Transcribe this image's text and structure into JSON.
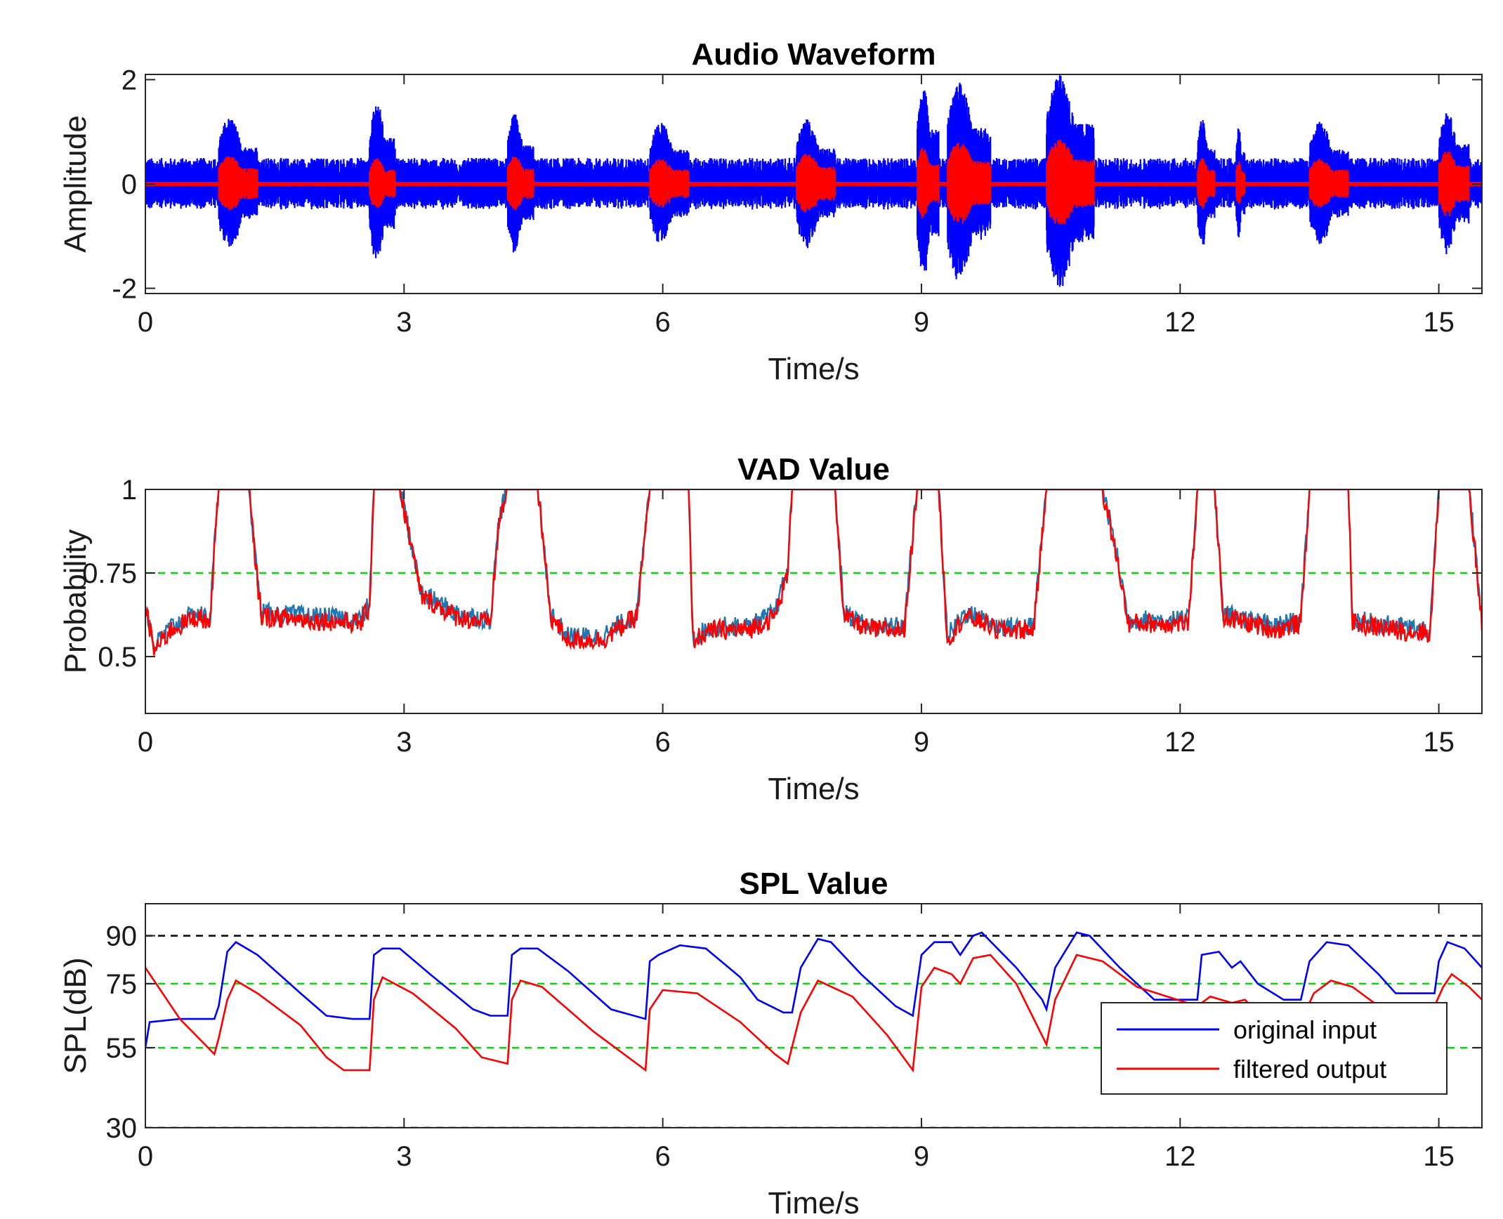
{
  "chart_data": [
    {
      "type": "line",
      "title": "Audio Waveform",
      "xlabel": "Time/s",
      "ylabel": "Amplitude",
      "xlim": [
        0,
        15.5
      ],
      "ylim": [
        -2.1,
        2.1
      ],
      "xticks": [
        0,
        3,
        6,
        9,
        12,
        15
      ],
      "yticks": [
        -2,
        0,
        2
      ],
      "ytick_labels": [
        "-2",
        "0",
        "2"
      ],
      "background_amplitude": 0.5,
      "series": [
        {
          "name": "original input",
          "color": "#0000ff",
          "bursts": [
            {
              "start": 0.85,
              "end": 1.3,
              "amp": 1.3
            },
            {
              "start": 2.6,
              "end": 2.9,
              "amp": 1.6
            },
            {
              "start": 4.2,
              "end": 4.5,
              "amp": 1.35
            },
            {
              "start": 5.85,
              "end": 6.3,
              "amp": 1.2
            },
            {
              "start": 7.55,
              "end": 8.0,
              "amp": 1.25
            },
            {
              "start": 8.95,
              "end": 9.2,
              "amp": 1.9
            },
            {
              "start": 9.3,
              "end": 9.8,
              "amp": 1.95
            },
            {
              "start": 10.45,
              "end": 11.0,
              "amp": 2.1
            },
            {
              "start": 12.2,
              "end": 12.4,
              "amp": 1.25
            },
            {
              "start": 12.65,
              "end": 12.75,
              "amp": 1.15
            },
            {
              "start": 13.5,
              "end": 13.95,
              "amp": 1.2
            },
            {
              "start": 15.0,
              "end": 15.35,
              "amp": 1.4
            }
          ]
        },
        {
          "name": "filtered output",
          "color": "#ff0000",
          "bursts": [
            {
              "start": 0.85,
              "end": 1.3,
              "amp": 0.55
            },
            {
              "start": 2.6,
              "end": 2.9,
              "amp": 0.5
            },
            {
              "start": 4.2,
              "end": 4.5,
              "amp": 0.55
            },
            {
              "start": 5.85,
              "end": 6.3,
              "amp": 0.5
            },
            {
              "start": 7.55,
              "end": 8.0,
              "amp": 0.6
            },
            {
              "start": 8.95,
              "end": 9.2,
              "amp": 0.7
            },
            {
              "start": 9.3,
              "end": 9.8,
              "amp": 0.8
            },
            {
              "start": 10.45,
              "end": 11.0,
              "amp": 0.85
            },
            {
              "start": 12.2,
              "end": 12.4,
              "amp": 0.5
            },
            {
              "start": 12.65,
              "end": 12.75,
              "amp": 0.45
            },
            {
              "start": 13.5,
              "end": 13.95,
              "amp": 0.5
            },
            {
              "start": 15.0,
              "end": 15.35,
              "amp": 0.65
            }
          ]
        }
      ]
    },
    {
      "type": "line",
      "title": "VAD Value",
      "xlabel": "Time/s",
      "ylabel": "Probability",
      "xlim": [
        0,
        15.5
      ],
      "ylim": [
        0.33,
        1.0
      ],
      "xticks": [
        0,
        3,
        6,
        9,
        12,
        15
      ],
      "yticks": [
        0.5,
        0.75,
        1
      ],
      "ytick_labels": [
        "0.5",
        "0.75",
        "1"
      ],
      "threshold": 0.75,
      "series": [
        {
          "name": "original input",
          "color": "#1f77b4",
          "baseline_offset": 0.01
        },
        {
          "name": "filtered output",
          "color": "#ff0000",
          "points": [
            [
              0,
              0.65
            ],
            [
              0.1,
              0.52
            ],
            [
              0.3,
              0.58
            ],
            [
              0.6,
              0.62
            ],
            [
              0.75,
              0.6
            ],
            [
              0.8,
              0.82
            ],
            [
              0.85,
              1.0
            ],
            [
              1.2,
              1.0
            ],
            [
              1.3,
              0.72
            ],
            [
              1.35,
              0.62
            ],
            [
              2.5,
              0.6
            ],
            [
              2.6,
              0.65
            ],
            [
              2.65,
              1.0
            ],
            [
              2.95,
              1.0
            ],
            [
              3.2,
              0.68
            ],
            [
              3.6,
              0.62
            ],
            [
              4.0,
              0.6
            ],
            [
              4.1,
              0.9
            ],
            [
              4.2,
              1.0
            ],
            [
              4.55,
              1.0
            ],
            [
              4.7,
              0.62
            ],
            [
              4.9,
              0.55
            ],
            [
              5.3,
              0.55
            ],
            [
              5.7,
              0.62
            ],
            [
              5.85,
              1.0
            ],
            [
              6.3,
              1.0
            ],
            [
              6.35,
              0.55
            ],
            [
              6.6,
              0.58
            ],
            [
              7.0,
              0.58
            ],
            [
              7.3,
              0.62
            ],
            [
              7.45,
              0.75
            ],
            [
              7.5,
              1.0
            ],
            [
              8.0,
              1.0
            ],
            [
              8.1,
              0.62
            ],
            [
              8.4,
              0.58
            ],
            [
              8.8,
              0.58
            ],
            [
              8.95,
              1.0
            ],
            [
              9.2,
              1.0
            ],
            [
              9.3,
              0.55
            ],
            [
              9.5,
              0.62
            ],
            [
              9.75,
              0.6
            ],
            [
              9.85,
              0.58
            ],
            [
              10.3,
              0.58
            ],
            [
              10.45,
              1.0
            ],
            [
              11.1,
              1.0
            ],
            [
              11.3,
              0.75
            ],
            [
              11.4,
              0.6
            ],
            [
              11.8,
              0.6
            ],
            [
              12.1,
              0.6
            ],
            [
              12.2,
              1.0
            ],
            [
              12.4,
              1.0
            ],
            [
              12.5,
              0.62
            ],
            [
              12.8,
              0.6
            ],
            [
              13.1,
              0.58
            ],
            [
              13.4,
              0.6
            ],
            [
              13.5,
              1.0
            ],
            [
              13.95,
              1.0
            ],
            [
              14.0,
              0.6
            ],
            [
              14.5,
              0.58
            ],
            [
              14.9,
              0.57
            ],
            [
              15.0,
              1.0
            ],
            [
              15.35,
              1.0
            ],
            [
              15.5,
              0.6
            ]
          ]
        }
      ]
    },
    {
      "type": "line",
      "title": "SPL Value",
      "xlabel": "Time/s",
      "ylabel": "SPL(dB)",
      "xlim": [
        0,
        15.5
      ],
      "ylim": [
        30,
        100
      ],
      "xticks": [
        0,
        3,
        6,
        9,
        12,
        15
      ],
      "yticks": [
        30,
        55,
        75,
        90
      ],
      "ytick_labels": [
        "30",
        "55",
        "75",
        "90"
      ],
      "reference_lines": [
        30,
        55,
        75,
        90
      ],
      "legend": {
        "position": "bottom-right",
        "entries": [
          "original input",
          "filtered output"
        ]
      },
      "series": [
        {
          "name": "original input",
          "color": "#0000ff",
          "points": [
            [
              0,
              55
            ],
            [
              0.05,
              63
            ],
            [
              0.4,
              64
            ],
            [
              0.8,
              64
            ],
            [
              0.85,
              68
            ],
            [
              0.95,
              85
            ],
            [
              1.05,
              88
            ],
            [
              1.3,
              84
            ],
            [
              1.8,
              72
            ],
            [
              2.1,
              65
            ],
            [
              2.4,
              64
            ],
            [
              2.6,
              64
            ],
            [
              2.65,
              84
            ],
            [
              2.75,
              86
            ],
            [
              2.95,
              86
            ],
            [
              3.3,
              78
            ],
            [
              3.8,
              67
            ],
            [
              4.0,
              65
            ],
            [
              4.2,
              65
            ],
            [
              4.25,
              84
            ],
            [
              4.35,
              86
            ],
            [
              4.55,
              86
            ],
            [
              4.9,
              79
            ],
            [
              5.4,
              67
            ],
            [
              5.8,
              64
            ],
            [
              5.85,
              82
            ],
            [
              5.95,
              84
            ],
            [
              6.2,
              87
            ],
            [
              6.5,
              86
            ],
            [
              6.9,
              77
            ],
            [
              7.1,
              70
            ],
            [
              7.4,
              66
            ],
            [
              7.5,
              66
            ],
            [
              7.6,
              80
            ],
            [
              7.8,
              89
            ],
            [
              7.95,
              88
            ],
            [
              8.3,
              78
            ],
            [
              8.7,
              68
            ],
            [
              8.9,
              65
            ],
            [
              9.0,
              84
            ],
            [
              9.15,
              88
            ],
            [
              9.35,
              88
            ],
            [
              9.45,
              84
            ],
            [
              9.6,
              90
            ],
            [
              9.7,
              91
            ],
            [
              10.1,
              80
            ],
            [
              10.4,
              70
            ],
            [
              10.45,
              67
            ],
            [
              10.55,
              80
            ],
            [
              10.8,
              91
            ],
            [
              10.95,
              90
            ],
            [
              11.3,
              80
            ],
            [
              11.7,
              70
            ],
            [
              12.2,
              70
            ],
            [
              12.25,
              84
            ],
            [
              12.45,
              85
            ],
            [
              12.6,
              80
            ],
            [
              12.7,
              82
            ],
            [
              12.9,
              75
            ],
            [
              13.2,
              70
            ],
            [
              13.4,
              70
            ],
            [
              13.5,
              82
            ],
            [
              13.7,
              88
            ],
            [
              13.95,
              87
            ],
            [
              14.3,
              78
            ],
            [
              14.5,
              72
            ],
            [
              14.95,
              72
            ],
            [
              15.0,
              82
            ],
            [
              15.1,
              88
            ],
            [
              15.3,
              86
            ],
            [
              15.5,
              80
            ]
          ]
        },
        {
          "name": "filtered output",
          "color": "#ff0000",
          "points": [
            [
              0,
              80
            ],
            [
              0.4,
              64
            ],
            [
              0.8,
              53
            ],
            [
              0.85,
              58
            ],
            [
              0.95,
              70
            ],
            [
              1.05,
              76
            ],
            [
              1.3,
              72
            ],
            [
              1.8,
              62
            ],
            [
              2.1,
              52
            ],
            [
              2.3,
              48
            ],
            [
              2.6,
              48
            ],
            [
              2.65,
              70
            ],
            [
              2.75,
              77
            ],
            [
              3.1,
              72
            ],
            [
              3.6,
              61
            ],
            [
              3.9,
              52
            ],
            [
              4.2,
              50
            ],
            [
              4.25,
              70
            ],
            [
              4.35,
              76
            ],
            [
              4.6,
              74
            ],
            [
              5.2,
              60
            ],
            [
              5.8,
              48
            ],
            [
              5.85,
              67
            ],
            [
              6.0,
              73
            ],
            [
              6.4,
              72
            ],
            [
              6.9,
              63
            ],
            [
              7.3,
              53
            ],
            [
              7.45,
              50
            ],
            [
              7.6,
              66
            ],
            [
              7.8,
              76
            ],
            [
              8.2,
              71
            ],
            [
              8.6,
              59
            ],
            [
              8.9,
              48
            ],
            [
              9.0,
              74
            ],
            [
              9.15,
              80
            ],
            [
              9.35,
              78
            ],
            [
              9.45,
              75
            ],
            [
              9.6,
              83
            ],
            [
              9.8,
              84
            ],
            [
              10.1,
              75
            ],
            [
              10.45,
              56
            ],
            [
              10.55,
              70
            ],
            [
              10.8,
              84
            ],
            [
              11.1,
              82
            ],
            [
              11.5,
              74
            ],
            [
              12.2,
              68
            ],
            [
              12.35,
              71
            ],
            [
              12.6,
              69
            ],
            [
              12.75,
              70
            ],
            [
              13.0,
              63
            ],
            [
              13.4,
              63
            ],
            [
              13.55,
              72
            ],
            [
              13.75,
              76
            ],
            [
              14.0,
              74
            ],
            [
              14.3,
              68
            ],
            [
              14.95,
              68
            ],
            [
              15.05,
              74
            ],
            [
              15.15,
              78
            ],
            [
              15.35,
              74
            ],
            [
              15.5,
              70
            ]
          ]
        }
      ]
    }
  ],
  "threshold_color": "#00dd00",
  "reference_line_color": "#000000"
}
